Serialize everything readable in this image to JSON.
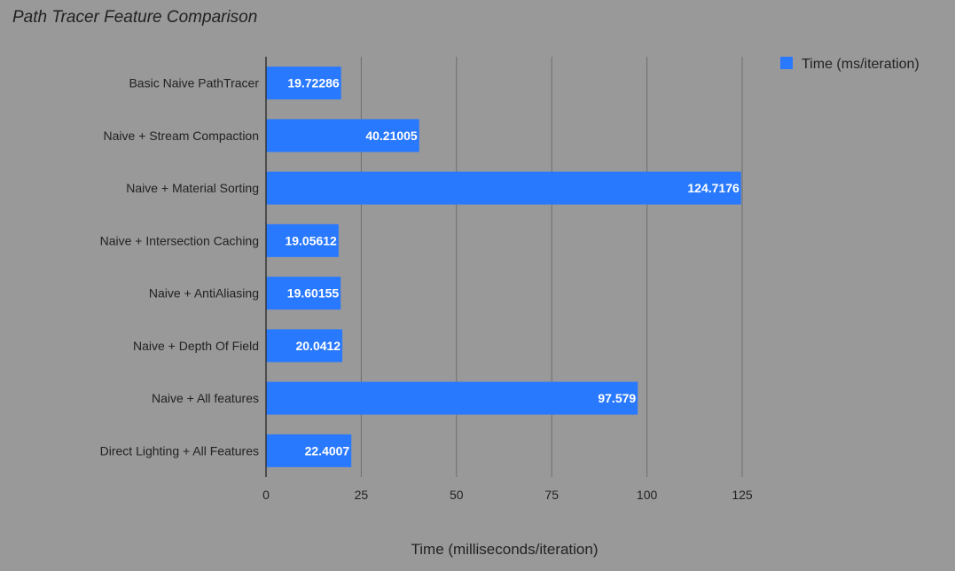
{
  "chart_data": {
    "type": "bar",
    "orientation": "horizontal",
    "title": "Path Tracer Feature Comparison",
    "xlabel": "Time (milliseconds/iteration)",
    "ylabel": "",
    "categories": [
      "Basic Naive PathTracer",
      "Naive + Stream Compaction",
      "Naive + Material Sorting",
      "Naive + Intersection Caching",
      "Naive + AntiAliasing",
      "Naive + Depth Of Field",
      "Naive + All features",
      "Direct Lighting + All Features"
    ],
    "series": [
      {
        "name": "Time (ms/iteration)",
        "color": "#2979ff",
        "values": [
          19.72286,
          40.21005,
          124.7176,
          19.05612,
          19.60155,
          20.0412,
          97.579,
          22.4007
        ],
        "labels": [
          "19.72286",
          "40.21005",
          "124.7176",
          "19.05612",
          "19.60155",
          "20.0412",
          "97.579",
          "22.4007"
        ]
      }
    ],
    "xlim": [
      0,
      125
    ],
    "xticks": [
      "0",
      "25",
      "50",
      "75",
      "100",
      "125"
    ],
    "grid": true,
    "legend_position": "top-right",
    "background": "#999999"
  }
}
